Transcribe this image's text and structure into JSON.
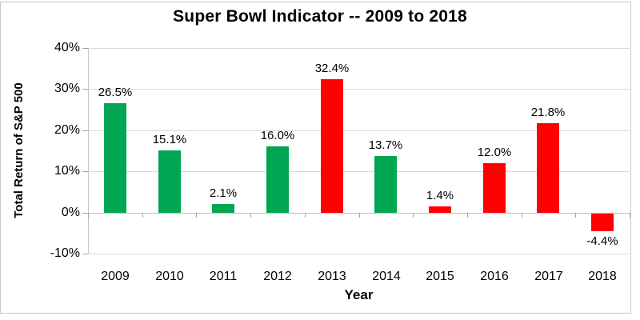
{
  "chart": {
    "title": "Super Bowl Indicator -- 2009 to 2018",
    "y_axis_title": "Total Return of S&P 500",
    "x_axis_title": "Year"
  },
  "chart_data": {
    "type": "bar",
    "title": "Super Bowl Indicator -- 2009 to 2018",
    "xlabel": "Year",
    "ylabel": "Total Return of S&P 500",
    "categories": [
      "2009",
      "2010",
      "2011",
      "2012",
      "2013",
      "2014",
      "2015",
      "2016",
      "2017",
      "2018"
    ],
    "values": [
      26.5,
      15.1,
      2.1,
      16.0,
      32.4,
      13.7,
      1.4,
      12.0,
      21.8,
      -4.4
    ],
    "data_labels": [
      "26.5%",
      "15.1%",
      "2.1%",
      "16.0%",
      "32.4%",
      "13.7%",
      "1.4%",
      "12.0%",
      "21.8%",
      "-4.4%"
    ],
    "bar_colors": [
      "#00A651",
      "#00A651",
      "#00A651",
      "#00A651",
      "#FF0000",
      "#00A651",
      "#FF0000",
      "#FF0000",
      "#FF0000",
      "#FF0000"
    ],
    "color_legend": {
      "green": "#00A651",
      "red": "#FF0000"
    },
    "y_ticks": [
      {
        "value": 40,
        "label": "40%"
      },
      {
        "value": 30,
        "label": "30%"
      },
      {
        "value": 20,
        "label": "20%"
      },
      {
        "value": 10,
        "label": "10%"
      },
      {
        "value": 0,
        "label": "0%"
      },
      {
        "value": -10,
        "label": "-10%"
      }
    ],
    "ylim": [
      -10,
      40
    ],
    "grid": true,
    "legend": "none"
  }
}
